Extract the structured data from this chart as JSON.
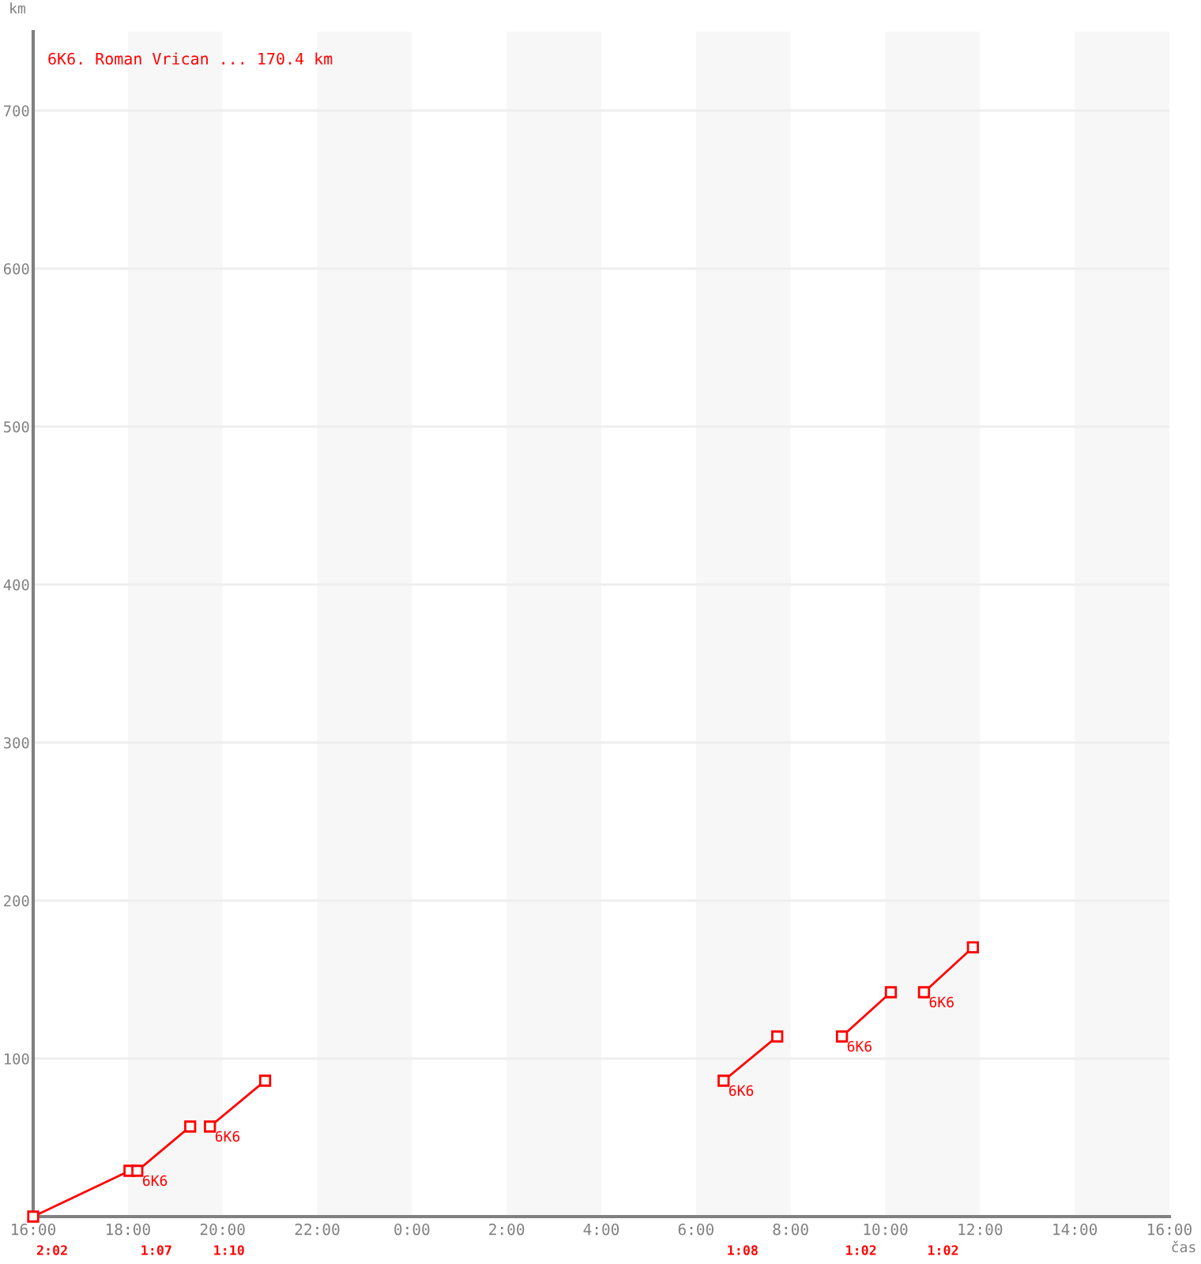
{
  "chart_data": {
    "type": "line",
    "title": "6K6. Roman Vrican ... 170.4 km",
    "xlabel": "čas",
    "ylabel": "km",
    "xlim": [
      "2000-01-01T16:00",
      "2000-01-02T16:00"
    ],
    "xticks": [
      {
        "value": "2000-01-01T16:00",
        "label": "16:00"
      },
      {
        "value": "2000-01-01T18:00",
        "label": "18:00"
      },
      {
        "value": "2000-01-01T20:00",
        "label": "20:00"
      },
      {
        "value": "2000-01-01T22:00",
        "label": "22:00"
      },
      {
        "value": "2000-01-02T00:00",
        "label": "0:00"
      },
      {
        "value": "2000-01-02T02:00",
        "label": "2:00"
      },
      {
        "value": "2000-01-02T04:00",
        "label": "4:00"
      },
      {
        "value": "2000-01-02T06:00",
        "label": "6:00"
      },
      {
        "value": "2000-01-02T08:00",
        "label": "8:00"
      },
      {
        "value": "2000-01-02T10:00",
        "label": "10:00"
      },
      {
        "value": "2000-01-02T12:00",
        "label": "12:00"
      },
      {
        "value": "2000-01-02T14:00",
        "label": "14:00"
      },
      {
        "value": "2000-01-02T16:00",
        "label": "16:00"
      }
    ],
    "ylim": [
      0,
      750
    ],
    "yticks": [
      100,
      200,
      300,
      400,
      500,
      600,
      700
    ],
    "grid": "y",
    "marker": "square",
    "line_style": "solid",
    "bands": [
      {
        "axis": "x",
        "from": "2000-01-01T18:00",
        "to": "2000-01-01T20:00",
        "color": "#f7f7f7"
      },
      {
        "axis": "x",
        "from": "2000-01-01T22:00",
        "to": "2000-01-02T00:00",
        "color": "#f7f7f7"
      },
      {
        "axis": "x",
        "from": "2000-01-02T02:00",
        "to": "2000-01-02T04:00",
        "color": "#f7f7f7"
      },
      {
        "axis": "x",
        "from": "2000-01-02T06:00",
        "to": "2000-01-02T08:00",
        "color": "#f7f7f7"
      },
      {
        "axis": "x",
        "from": "2000-01-02T10:00",
        "to": "2000-01-02T12:00",
        "color": "#f7f7f7"
      },
      {
        "axis": "x",
        "from": "2000-01-02T14:00",
        "to": "2000-01-02T16:00",
        "color": "#f7f7f7"
      }
    ],
    "series": [
      {
        "color": "#ff0000",
        "x": [
          "2000-01-01T16:00",
          "2000-01-01T18:02"
        ],
        "values": [
          0,
          29
        ]
      },
      {
        "name": "6K6",
        "color": "#ff0000",
        "x": [
          "2000-01-01T18:12",
          "2000-01-01T19:19"
        ],
        "values": [
          29,
          57
        ]
      },
      {
        "name": "6K6",
        "color": "#ff0000",
        "x": [
          "2000-01-01T19:44",
          "2000-01-01T20:54"
        ],
        "values": [
          57,
          86
        ]
      },
      {
        "name": "6K6",
        "color": "#ff0000",
        "x": [
          "2000-01-02T06:35",
          "2000-01-02T07:43"
        ],
        "values": [
          86,
          114
        ]
      },
      {
        "name": "6K6",
        "color": "#ff0000",
        "x": [
          "2000-01-02T09:05",
          "2000-01-02T10:07"
        ],
        "values": [
          114,
          142
        ]
      },
      {
        "name": "6K6",
        "color": "#ff0000",
        "x": [
          "2000-01-02T10:49",
          "2000-01-02T11:51"
        ],
        "values": [
          142,
          170.4
        ]
      }
    ],
    "annotations": [
      "2:02",
      "1:07",
      "1:10",
      "1:08",
      "1:02",
      "1:02"
    ]
  }
}
